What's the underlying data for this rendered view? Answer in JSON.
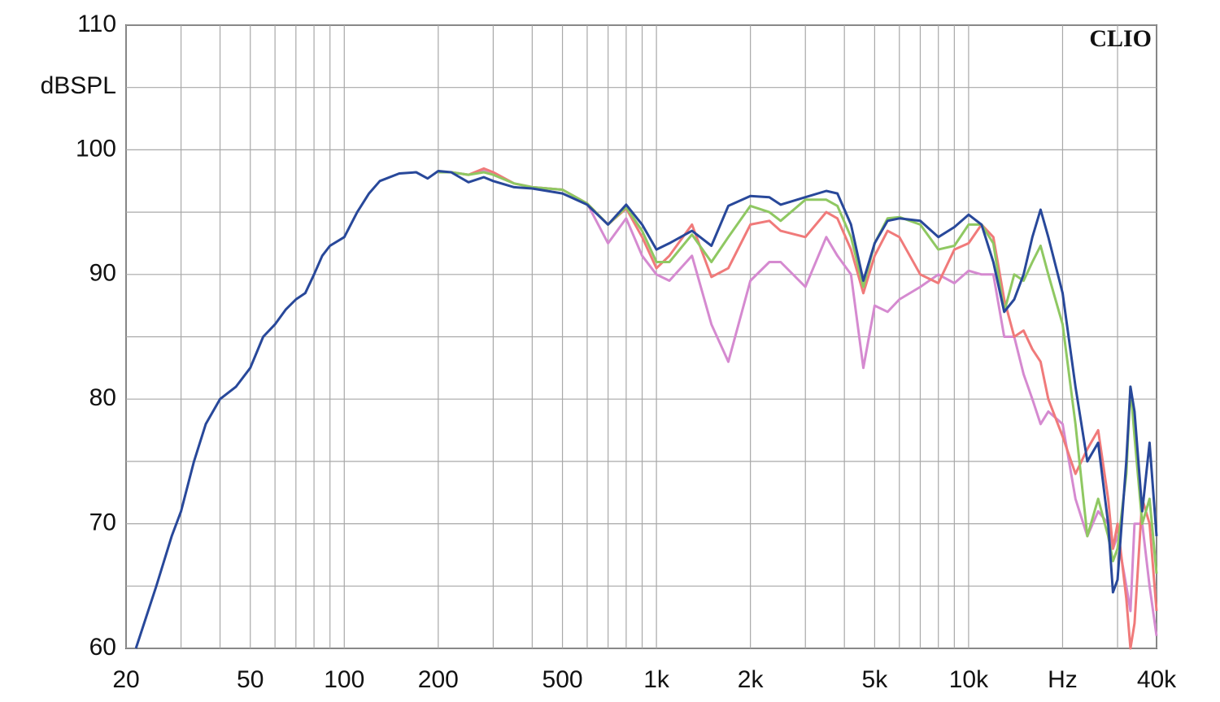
{
  "chart_data": {
    "type": "line",
    "brand": "CLIO",
    "ylabel": "dBSPL",
    "log_x": true,
    "grid": true,
    "xlim": [
      20,
      40000
    ],
    "ylim": [
      60,
      110
    ],
    "xticks": [
      20,
      50,
      100,
      200,
      500,
      {
        "value": 1000,
        "label": "1k"
      },
      {
        "value": 2000,
        "label": "2k"
      },
      {
        "value": 5000,
        "label": "5k"
      },
      {
        "value": 10000,
        "label": "10k"
      },
      {
        "value": 20000,
        "label": "Hz"
      },
      {
        "value": 40000,
        "label": "40k"
      }
    ],
    "xminorticks": [
      30,
      40,
      60,
      70,
      80,
      90,
      300,
      400,
      600,
      700,
      800,
      900,
      3000,
      4000,
      6000,
      7000,
      8000,
      9000,
      30000
    ],
    "yticks": [
      60,
      70,
      80,
      90,
      100,
      110
    ],
    "yminorticks": [
      65,
      75,
      85,
      95,
      105
    ],
    "x": [
      21.5,
      25,
      28,
      30,
      33,
      36,
      40,
      45,
      50,
      55,
      60,
      65,
      70,
      75,
      80,
      85,
      90,
      100,
      110,
      120,
      130,
      150,
      170,
      185,
      200,
      220,
      250,
      280,
      300,
      350,
      400,
      500,
      600,
      700,
      800,
      900,
      1000,
      1100,
      1300,
      1500,
      1700,
      2000,
      2300,
      2500,
      3000,
      3500,
      3800,
      4200,
      4600,
      5000,
      5500,
      6000,
      7000,
      8000,
      9000,
      10000,
      11000,
      12000,
      13000,
      14000,
      15000,
      16000,
      17000,
      18000,
      20000,
      22000,
      24000,
      26000,
      28000,
      29000,
      30000,
      32000,
      33000,
      34000,
      36000,
      38000,
      40000
    ],
    "series": [
      {
        "color": "#d58ad0",
        "values": [
          null,
          null,
          null,
          null,
          null,
          null,
          null,
          null,
          null,
          null,
          null,
          null,
          null,
          null,
          null,
          null,
          null,
          null,
          null,
          null,
          null,
          null,
          null,
          null,
          98.2,
          98.2,
          98,
          98.3,
          98,
          97.3,
          97,
          96.8,
          95.7,
          92.5,
          94.5,
          91.5,
          90,
          89.5,
          91.5,
          86,
          83,
          89.5,
          91,
          91,
          89,
          93,
          91.5,
          90,
          82.5,
          87.5,
          87,
          88,
          89,
          90,
          89.3,
          90.3,
          90,
          90,
          85,
          85,
          82,
          80,
          78,
          79,
          78,
          72,
          69,
          71,
          70,
          68,
          69,
          65,
          63,
          70,
          70,
          65,
          61
        ]
      },
      {
        "color": "#f07a7a",
        "values": [
          null,
          null,
          null,
          null,
          null,
          null,
          null,
          null,
          null,
          null,
          null,
          null,
          null,
          null,
          null,
          null,
          null,
          null,
          null,
          null,
          null,
          null,
          null,
          null,
          98.2,
          98.2,
          98,
          98.5,
          98.2,
          97.3,
          97,
          96.8,
          95.7,
          94,
          95.3,
          93,
          90.5,
          91.5,
          94,
          89.8,
          90.5,
          94,
          94.3,
          93.5,
          93,
          95,
          94.5,
          92,
          88.5,
          91.5,
          93.5,
          93,
          90,
          89.3,
          92,
          92.5,
          94,
          93,
          88,
          85,
          85.5,
          84,
          83,
          80,
          77,
          74,
          76,
          77.5,
          72,
          68,
          70,
          64,
          60,
          62,
          72,
          70,
          63
        ]
      },
      {
        "color": "#8fc862",
        "values": [
          null,
          null,
          null,
          null,
          null,
          null,
          null,
          null,
          null,
          null,
          null,
          null,
          null,
          null,
          null,
          null,
          null,
          null,
          null,
          null,
          null,
          null,
          null,
          null,
          98.2,
          98.2,
          98,
          98.2,
          98,
          97.3,
          97,
          96.8,
          95.7,
          94,
          95.4,
          93.5,
          91,
          91,
          93.2,
          91,
          93,
          95.5,
          95,
          94.3,
          96,
          96,
          95.5,
          93,
          89,
          92.5,
          94.5,
          94.6,
          94,
          92,
          92.3,
          94,
          94,
          92.5,
          87,
          90,
          89.5,
          91,
          92.3,
          90,
          86,
          78,
          69,
          72,
          69,
          67,
          68,
          74,
          81,
          77,
          70,
          72,
          66
        ]
      },
      {
        "color": "#28489a",
        "values": [
          60,
          65,
          69,
          71,
          75,
          78,
          80,
          81,
          82.5,
          85,
          86,
          87.2,
          88,
          88.5,
          90,
          91.5,
          92.3,
          93,
          95,
          96.5,
          97.5,
          98.1,
          98.2,
          97.7,
          98.3,
          98.2,
          97.4,
          97.8,
          97.5,
          97,
          96.9,
          96.5,
          95.6,
          94,
          95.6,
          94,
          92,
          92.5,
          93.5,
          92.3,
          95.5,
          96.3,
          96.2,
          95.6,
          96.2,
          96.7,
          96.5,
          94,
          89.5,
          92.5,
          94.3,
          94.5,
          94.3,
          93,
          93.8,
          94.8,
          94,
          91,
          87,
          88,
          90,
          93,
          95.2,
          93,
          88.5,
          81,
          75,
          76.5,
          70,
          64.5,
          65.5,
          75,
          81,
          79,
          71,
          76.5,
          69
        ]
      }
    ]
  }
}
